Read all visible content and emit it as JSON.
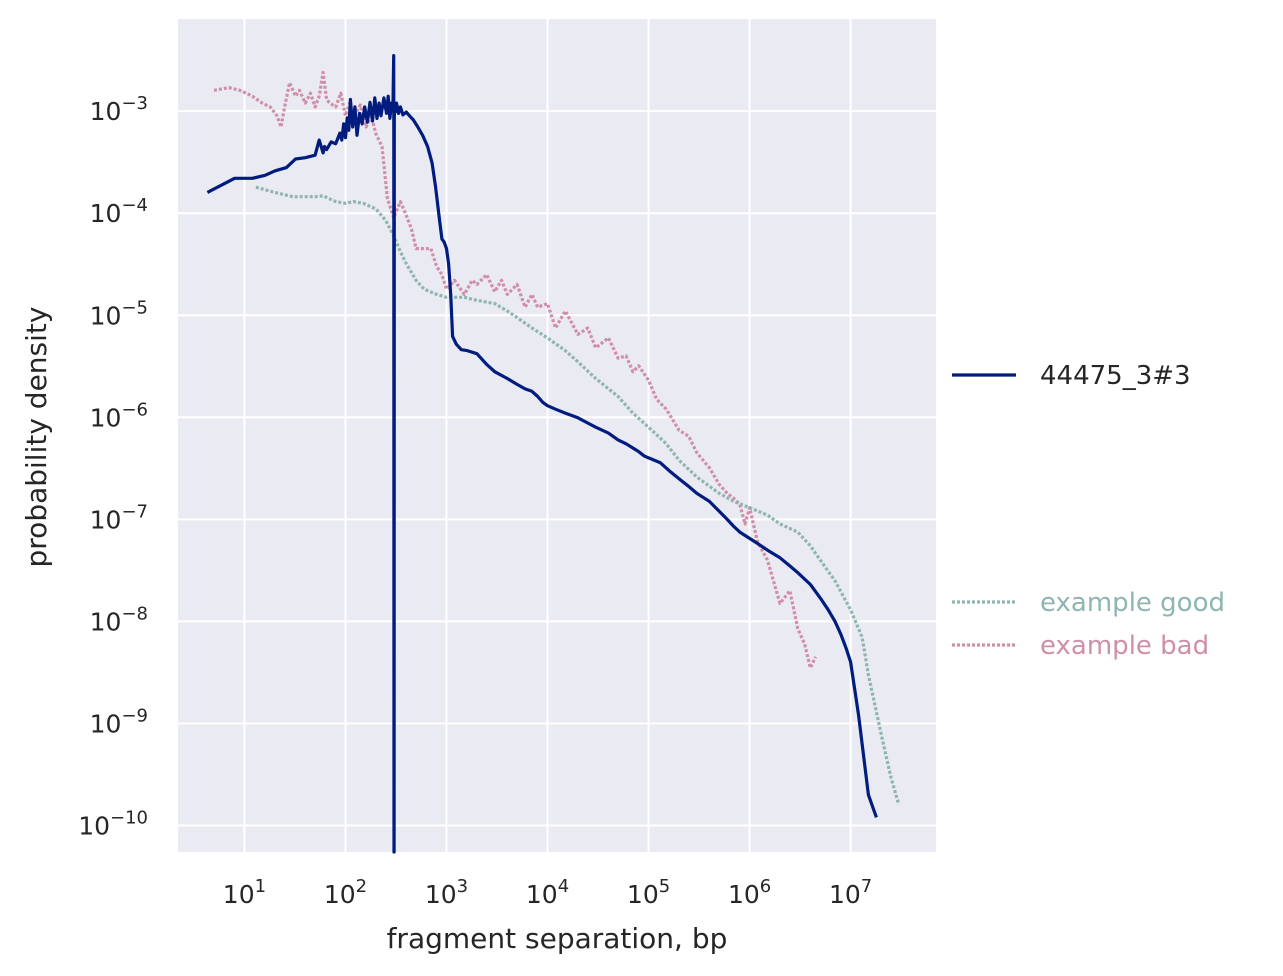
{
  "chart_data": {
    "type": "line",
    "xlabel": "fragment separation, bp",
    "ylabel": "probability density",
    "x_scale": "log",
    "y_scale": "log",
    "xlim": [
      2.2,
      70000000
    ],
    "ylim": [
      5.5e-11,
      0.008
    ],
    "grid": true,
    "legend_placement": "right",
    "x_ticks": [
      {
        "value": 10,
        "base": "10",
        "exp": "1"
      },
      {
        "value": 100,
        "base": "10",
        "exp": "2"
      },
      {
        "value": 1000,
        "base": "10",
        "exp": "3"
      },
      {
        "value": 10000,
        "base": "10",
        "exp": "4"
      },
      {
        "value": 100000,
        "base": "10",
        "exp": "5"
      },
      {
        "value": 1000000,
        "base": "10",
        "exp": "6"
      },
      {
        "value": 10000000,
        "base": "10",
        "exp": "7"
      }
    ],
    "y_ticks": [
      {
        "value": 0.001,
        "base": "10",
        "exp": "−3"
      },
      {
        "value": 0.0001,
        "base": "10",
        "exp": "−4"
      },
      {
        "value": 1e-05,
        "base": "10",
        "exp": "−5"
      },
      {
        "value": 1e-06,
        "base": "10",
        "exp": "−6"
      },
      {
        "value": 1e-07,
        "base": "10",
        "exp": "−7"
      },
      {
        "value": 1e-08,
        "base": "10",
        "exp": "−8"
      },
      {
        "value": 1e-09,
        "base": "10",
        "exp": "−9"
      },
      {
        "value": 1e-10,
        "base": "10",
        "exp": "−10"
      }
    ],
    "series": [
      {
        "name": "44475_3#3",
        "color": "#001c7f",
        "style": "solid",
        "x": [
          4.3,
          8,
          12,
          16,
          20,
          26,
          32,
          40,
          50,
          55,
          60,
          62,
          65,
          72,
          80,
          88,
          92,
          96,
          100,
          104,
          108,
          112,
          118,
          124,
          130,
          138,
          146,
          155,
          165,
          175,
          185,
          195,
          205,
          215,
          225,
          240,
          255,
          265,
          275,
          285,
          295,
          300,
          301,
          302,
          303,
          304,
          305,
          306,
          310,
          320,
          335,
          350,
          370,
          400,
          430,
          470,
          520,
          580,
          650,
          720,
          780,
          850,
          900,
          950,
          1000,
          1050,
          1100,
          1150,
          1250,
          1400,
          1600,
          2000,
          2500,
          3000,
          4000,
          5000,
          6000,
          7000,
          8000,
          9000,
          10000,
          12000,
          15000,
          20000,
          25000,
          30000,
          40000,
          50000,
          60000,
          70000,
          80000,
          90000,
          100000,
          130000,
          160000,
          200000,
          250000,
          300000,
          400000,
          500000,
          600000,
          700000,
          800000,
          1000000,
          1200000,
          1500000,
          2000000,
          2500000,
          3000000,
          4000000,
          5000000,
          6000000,
          7000000,
          8000000,
          9000000,
          10000000,
          12000000,
          15000000,
          18000000
        ],
        "y": [
          0.00016,
          0.00022,
          0.00022,
          0.000235,
          0.00026,
          0.00028,
          0.00034,
          0.00035,
          0.00037,
          0.00052,
          0.00039,
          0.00045,
          0.00042,
          0.0005,
          0.00048,
          0.00061,
          0.00052,
          0.00075,
          0.00055,
          0.00086,
          0.00065,
          0.0013,
          0.0007,
          0.0011,
          0.00058,
          0.00095,
          0.00075,
          0.0011,
          0.00078,
          0.00122,
          0.0008,
          0.00135,
          0.00085,
          0.0012,
          0.0009,
          0.00135,
          0.00095,
          0.0014,
          0.00085,
          0.0012,
          0.001,
          0.0035,
          0.001,
          5e-11,
          5e-11,
          0.001,
          0.0009,
          0.00112,
          0.00098,
          0.0012,
          0.00095,
          0.0011,
          0.00092,
          0.00098,
          0.0009,
          0.00082,
          0.0007,
          0.00058,
          0.00045,
          0.00031,
          0.00018,
          8.8e-05,
          5.6e-05,
          5.2e-05,
          4.5e-05,
          3.2e-05,
          1.6e-05,
          6.2e-06,
          5.2e-06,
          4.6e-06,
          4.5e-06,
          4.2e-06,
          3.3e-06,
          2.8e-06,
          2.4e-06,
          2.1e-06,
          1.9e-06,
          1.8e-06,
          1.6e-06,
          1.4e-06,
          1.3e-06,
          1.2e-06,
          1.1e-06,
          9.9e-07,
          8.8e-07,
          8e-07,
          7e-07,
          6e-07,
          5.5e-07,
          5e-07,
          4.6e-07,
          4.2e-07,
          4e-07,
          3.6e-07,
          3e-07,
          2.5e-07,
          2.1e-07,
          1.8e-07,
          1.5e-07,
          1.2e-07,
          1e-07,
          8.5e-08,
          7.5e-08,
          6.5e-08,
          5.8e-08,
          5e-08,
          4.2e-08,
          3.5e-08,
          3e-08,
          2.3e-08,
          1.7e-08,
          1.3e-08,
          1e-08,
          7.5e-09,
          5.5e-09,
          4e-09,
          1.2e-09,
          2e-10,
          1.2e-10
        ]
      },
      {
        "name": "example good",
        "color": "#8fb5b1",
        "style": "dotted",
        "x": [
          13,
          20,
          30,
          40,
          50,
          60,
          70,
          80,
          100,
          120,
          150,
          200,
          250,
          300,
          350,
          400,
          500,
          600,
          800,
          1000,
          1500,
          2000,
          3000,
          4000,
          5000,
          7000,
          10000,
          15000,
          20000,
          30000,
          50000,
          70000,
          100000,
          150000,
          200000,
          300000,
          500000,
          700000,
          1000000,
          1500000,
          2000000,
          3000000,
          4000000,
          5000000,
          7000000,
          10000000,
          13000000,
          15000000,
          20000000,
          25000000,
          30000000
        ],
        "y": [
          0.00018,
          0.00016,
          0.000145,
          0.000145,
          0.000145,
          0.000148,
          0.000138,
          0.00013,
          0.000125,
          0.00013,
          0.000125,
          0.00011,
          8.5e-05,
          6e-05,
          4.2e-05,
          3.2e-05,
          2.2e-05,
          1.8e-05,
          1.6e-05,
          1.5e-05,
          1.5e-05,
          1.4e-05,
          1.3e-05,
          1.1e-05,
          9.5e-06,
          7.5e-06,
          6e-06,
          4.5e-06,
          3.5e-06,
          2.4e-06,
          1.6e-06,
          1.1e-06,
          8e-07,
          5.5e-07,
          3.8e-07,
          2.6e-07,
          1.8e-07,
          1.5e-07,
          1.3e-07,
          1.1e-07,
          9e-08,
          7.5e-08,
          5.5e-08,
          4e-08,
          2.5e-08,
          1.3e-08,
          7e-09,
          3e-09,
          8e-10,
          3e-10,
          1.6e-10
        ]
      },
      {
        "name": "example bad",
        "color": "#d08fa8",
        "style": "dotted",
        "x": [
          5,
          7,
          9,
          12,
          15,
          18,
          21,
          23,
          25,
          28,
          32,
          35,
          40,
          45,
          50,
          55,
          60,
          65,
          70,
          80,
          90,
          100,
          110,
          120,
          140,
          160,
          180,
          200,
          230,
          260,
          300,
          350,
          400,
          450,
          500,
          600,
          700,
          800,
          900,
          1000,
          1200,
          1500,
          1800,
          2000,
          2500,
          3000,
          3500,
          4000,
          5000,
          6000,
          7000,
          8000,
          10000,
          12000,
          15000,
          20000,
          25000,
          30000,
          40000,
          50000,
          60000,
          70000,
          80000,
          100000,
          120000,
          150000,
          200000,
          250000,
          300000,
          400000,
          500000,
          600000,
          700000,
          800000,
          900000,
          1000000,
          1200000,
          1500000,
          2000000,
          2500000,
          3000000,
          3500000,
          4000000,
          4500000
        ],
        "y": [
          0.0016,
          0.0017,
          0.0016,
          0.0014,
          0.0012,
          0.0011,
          0.0009,
          0.0007,
          0.0011,
          0.0019,
          0.0014,
          0.0016,
          0.0012,
          0.0015,
          0.0011,
          0.0014,
          0.0024,
          0.0013,
          0.0012,
          0.0011,
          0.0015,
          0.0009,
          0.0012,
          0.00085,
          0.00115,
          0.0007,
          0.0009,
          0.0006,
          0.00045,
          0.00014,
          9e-05,
          0.00013,
          9.5e-05,
          7e-05,
          4.5e-05,
          4.5e-05,
          4.5e-05,
          3e-05,
          2.5e-05,
          1.8e-05,
          2.2e-05,
          1.6e-05,
          2.2e-05,
          2e-05,
          2.5e-05,
          1.7e-05,
          2.2e-05,
          1.6e-05,
          2e-05,
          1.2e-05,
          1.6e-05,
          1.2e-05,
          1.3e-05,
          7.5e-06,
          1.1e-05,
          6.5e-06,
          7.5e-06,
          4.8e-06,
          6e-06,
          3.8e-06,
          4e-06,
          2.8e-06,
          3.2e-06,
          2.3e-06,
          1.5e-06,
          1.2e-06,
          7.5e-07,
          6.5e-07,
          4.5e-07,
          3.2e-07,
          2.2e-07,
          1.8e-07,
          1.6e-07,
          1.4e-07,
          9e-08,
          1.3e-07,
          6e-08,
          4e-08,
          1.5e-08,
          2e-08,
          8.5e-09,
          6e-09,
          3.5e-09,
          4.5e-09
        ]
      }
    ]
  }
}
